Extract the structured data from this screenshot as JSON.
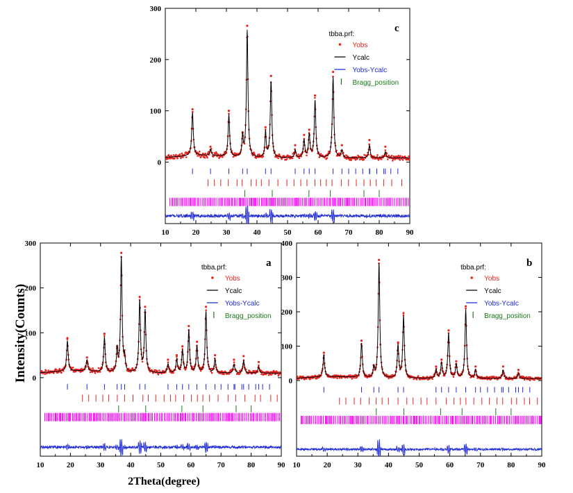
{
  "figure": {
    "ylabel": "Intensity(Counts)",
    "xlabel": "2Theta(degree)"
  },
  "colors": {
    "yobs": "#e8231e",
    "ycalc": "#000000",
    "diff": "#1f2bd6",
    "bragg1": "#1f2bd6",
    "bragg2": "#e8231e",
    "bragg3": "#1a7a1a",
    "bragg4": "#ff00ff"
  },
  "chart_data": [
    {
      "panel": "c",
      "type": "line",
      "file_label": "tbba.prf:",
      "legend": [
        "Yobs",
        "Ycalc",
        "Yobs-Ycalc",
        "Bragg_position"
      ],
      "x_ticks": [
        "10",
        "20",
        "30",
        "40",
        "50",
        "60",
        "70",
        "80",
        "90"
      ],
      "y_ticks": [
        "0",
        "100",
        "200",
        "300"
      ],
      "xlim": [
        10,
        90
      ],
      "ylim": [
        -120,
        300
      ],
      "background": 8,
      "diff_offset": -105,
      "peaks": [
        [
          18.9,
          85,
          0.3
        ],
        [
          24.8,
          12,
          0.3
        ],
        [
          30.8,
          82,
          0.3
        ],
        [
          35.3,
          40,
          0.25
        ],
        [
          36.8,
          248,
          0.3
        ],
        [
          42.8,
          50,
          0.25
        ],
        [
          44.6,
          150,
          0.3
        ],
        [
          52.5,
          15,
          0.3
        ],
        [
          55.4,
          35,
          0.3
        ],
        [
          57.1,
          45,
          0.3
        ],
        [
          59.0,
          112,
          0.3
        ],
        [
          64.9,
          158,
          0.3
        ],
        [
          67.8,
          15,
          0.3
        ],
        [
          76.8,
          25,
          0.3
        ],
        [
          82.0,
          12,
          0.3
        ]
      ]
    },
    {
      "panel": "a",
      "type": "line",
      "file_label": "tbba.prf:",
      "legend": [
        "Yobs",
        "Ycalc",
        "Yobs-Ycalc",
        "Bragg_position"
      ],
      "x_ticks": [
        "10",
        "20",
        "30",
        "40",
        "50",
        "60",
        "70",
        "80",
        "90"
      ],
      "y_ticks": [
        "0",
        "100",
        "200",
        "300"
      ],
      "xlim": [
        10,
        90
      ],
      "ylim": [
        -175,
        300
      ],
      "background": 10,
      "diff_offset": -155,
      "peaks": [
        [
          19.0,
          68,
          0.3
        ],
        [
          25.5,
          25,
          0.3
        ],
        [
          31.3,
          78,
          0.3
        ],
        [
          35.5,
          50,
          0.25
        ],
        [
          36.9,
          258,
          0.3
        ],
        [
          38.0,
          30,
          0.25
        ],
        [
          43.0,
          160,
          0.3
        ],
        [
          44.8,
          138,
          0.3
        ],
        [
          52.4,
          20,
          0.3
        ],
        [
          55.3,
          30,
          0.3
        ],
        [
          57.2,
          50,
          0.3
        ],
        [
          59.3,
          95,
          0.3
        ],
        [
          62.0,
          60,
          0.3
        ],
        [
          65.0,
          138,
          0.3
        ],
        [
          68.0,
          30,
          0.3
        ],
        [
          74.3,
          20,
          0.3
        ],
        [
          77.5,
          28,
          0.3
        ],
        [
          82.5,
          15,
          0.3
        ]
      ]
    },
    {
      "panel": "b",
      "type": "line",
      "file_label": "tbba.prf:",
      "legend": [
        "Yobs",
        "Ycalc",
        "Yobs-Ycalc",
        "Bragg_position"
      ],
      "x_ticks": [
        "10",
        "20",
        "30",
        "40",
        "50",
        "60",
        "70",
        "80",
        "90"
      ],
      "y_ticks": [
        "0",
        "100",
        "200",
        "300",
        "400"
      ],
      "xlim": [
        10,
        90
      ],
      "ylim": [
        -220,
        400
      ],
      "background": 6,
      "diff_offset": -200,
      "peaks": [
        [
          18.9,
          65,
          0.3
        ],
        [
          31.2,
          100,
          0.3
        ],
        [
          35.2,
          28,
          0.25
        ],
        [
          36.9,
          335,
          0.3
        ],
        [
          43.1,
          95,
          0.3
        ],
        [
          44.9,
          180,
          0.3
        ],
        [
          55.5,
          25,
          0.3
        ],
        [
          57.3,
          45,
          0.3
        ],
        [
          59.6,
          130,
          0.3
        ],
        [
          62.1,
          40,
          0.3
        ],
        [
          65.2,
          200,
          0.3
        ],
        [
          68.4,
          25,
          0.3
        ],
        [
          77.4,
          25,
          0.3
        ],
        [
          82.4,
          15,
          0.3
        ]
      ]
    }
  ]
}
